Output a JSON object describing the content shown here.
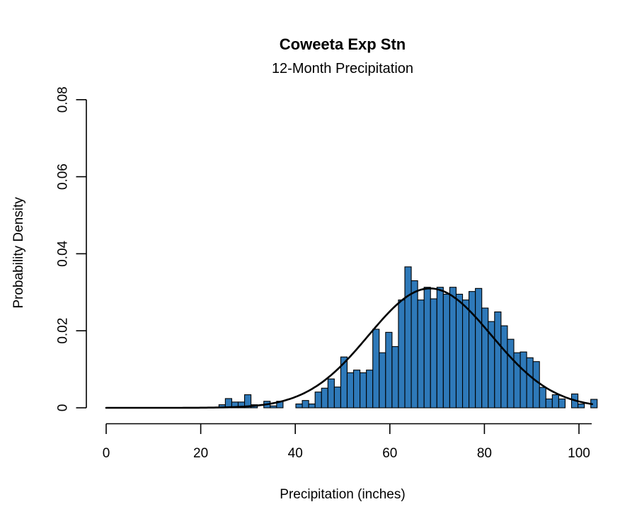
{
  "colors": {
    "background": "#ffffff",
    "bar_fill": "#2e79b9",
    "bar_border": "#000000",
    "curve": "#000000",
    "axis": "#000000",
    "text": "#000000"
  },
  "chart_data": {
    "type": "bar",
    "subtype": "histogram-with-density-curve",
    "title": "Coweeta Exp Stn",
    "subtitle": "12-Month Precipitation",
    "xlabel": "Precipitation (inches)",
    "ylabel": "Probability Density",
    "xlim": [
      0,
      103.5
    ],
    "ylim": [
      0,
      0.08
    ],
    "grid": false,
    "legend": "none",
    "x_ticks": {
      "values": [
        0,
        20,
        40,
        60,
        80,
        100
      ],
      "labels": [
        "0",
        "20",
        "40",
        "60",
        "80",
        "100"
      ]
    },
    "y_ticks": {
      "values": [
        0,
        0.02,
        0.04,
        0.06,
        0.08
      ],
      "labels": [
        "0",
        "0.02",
        "0.04",
        "0.06",
        "0.08"
      ]
    },
    "bins": {
      "start_x": 23.85,
      "bin_width": 1.356,
      "densities": [
        0.0008,
        0.0024,
        0.0015,
        0.0015,
        0.0034,
        0.0008,
        0,
        0.0017,
        0.0005,
        0.0017,
        0,
        0,
        0.001,
        0.0019,
        0.001,
        0.0041,
        0.0051,
        0.0075,
        0.0054,
        0.0132,
        0.0091,
        0.0098,
        0.0091,
        0.0098,
        0.0204,
        0.0143,
        0.0196,
        0.0159,
        0.028,
        0.0366,
        0.033,
        0.028,
        0.0313,
        0.0283,
        0.0313,
        0.0295,
        0.0313,
        0.0295,
        0.028,
        0.0302,
        0.031,
        0.0259,
        0.0224,
        0.0249,
        0.0213,
        0.0178,
        0.0143,
        0.0145,
        0.013,
        0.012,
        0.0053,
        0.0023,
        0.0034,
        0.0023,
        0,
        0.0036,
        0.001,
        0,
        0.0022
      ]
    },
    "normal_curve": {
      "mean": 68.5,
      "sd": 13.0,
      "peak_density": 0.031,
      "x_range": [
        0,
        102.8
      ]
    }
  }
}
